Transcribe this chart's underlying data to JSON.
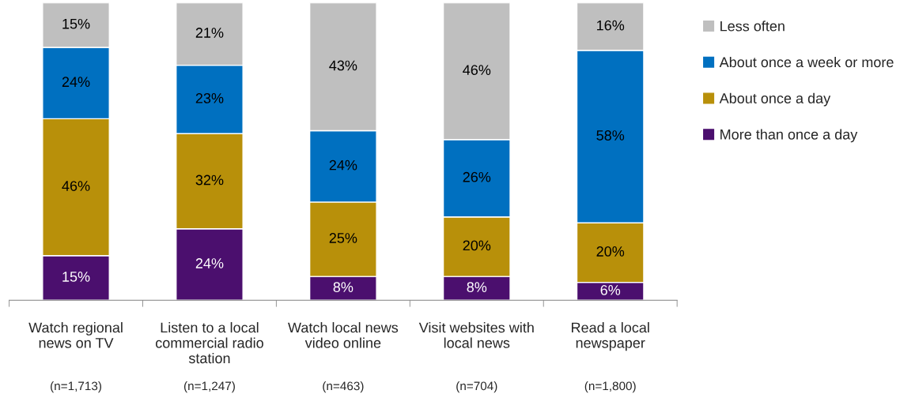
{
  "chart_data": {
    "type": "bar",
    "stacked": true,
    "legend": "right",
    "grid": false,
    "categories": [
      "Watch regional\nnews on TV",
      "Listen to a local\ncommercial radio\nstation",
      "Watch local news\nvideo online",
      "Visit websites with\nlocal news",
      "Read a local\nnewspaper"
    ],
    "series": [
      {
        "name": "More than once a day",
        "color": "#4b0f6e",
        "values": [
          15,
          24,
          8,
          8,
          6
        ],
        "value_labels": [
          "15%",
          "24%",
          "8%",
          "8%",
          "6%"
        ]
      },
      {
        "name": "About once a day",
        "color": "#b8900a",
        "values": [
          46,
          32,
          25,
          20,
          20
        ],
        "value_labels": [
          "46%",
          "32%",
          "25%",
          "20%",
          "20%"
        ]
      },
      {
        "name": "About once a week or more",
        "color": "#0070c0",
        "values": [
          24,
          23,
          24,
          26,
          58
        ],
        "value_labels": [
          "24%",
          "23%",
          "24%",
          "26%",
          "58%"
        ]
      },
      {
        "name": "Less often",
        "color": "#bfbfbf",
        "values": [
          15,
          21,
          43,
          46,
          16
        ],
        "value_labels": [
          "15%",
          "21%",
          "43%",
          "46%",
          "16%"
        ]
      }
    ],
    "annotations": [
      "(n=1,713)",
      "(n=1,247)",
      "(n=463)",
      "(n=704)",
      "(n=1,800)"
    ]
  }
}
